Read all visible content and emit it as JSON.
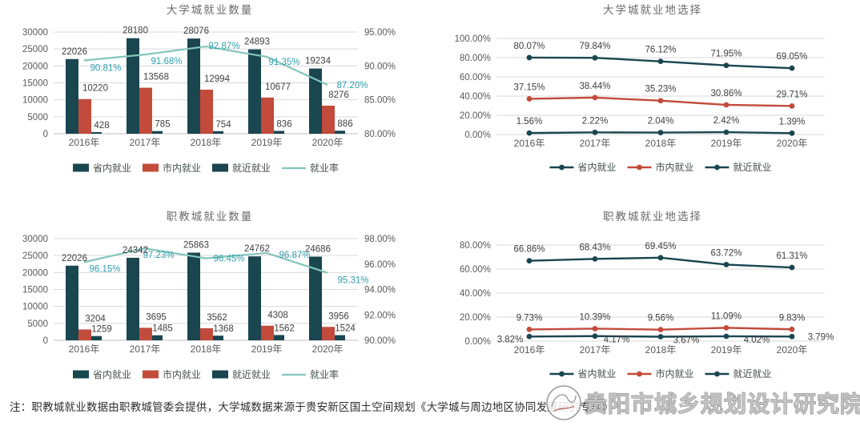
{
  "page": {
    "background": "#ffffff"
  },
  "colors": {
    "dark": "#1a4650",
    "red": "#c24b3c",
    "teal": "#84c5bb",
    "label": "#3f3f3f",
    "axis": "#595959",
    "title": "#6a6a6a",
    "grid": "#d9d9d9",
    "baseline": "#bfbfbf",
    "line_label": "#2f9fae",
    "legend_text": "#44504f",
    "watermark": "#8f8f8f"
  },
  "chart_data": [
    {
      "id": "university-town-employment-count",
      "type": "bar",
      "title": "大学城就业数量",
      "categories": [
        "2016年",
        "2017年",
        "2018年",
        "2019年",
        "2020年"
      ],
      "series": [
        {
          "name": "省内就业",
          "role": "bar",
          "color": "dark",
          "values": [
            22026,
            28180,
            28076,
            24893,
            19234
          ]
        },
        {
          "name": "市内就业",
          "role": "bar",
          "color": "red",
          "values": [
            10220,
            13568,
            12994,
            10677,
            8276
          ]
        },
        {
          "name": "就近就业",
          "role": "bar",
          "color": "dark",
          "values": [
            428,
            785,
            754,
            836,
            886
          ]
        },
        {
          "name": "就业率",
          "role": "line",
          "color": "teal",
          "values": [
            90.81,
            91.68,
            92.87,
            91.35,
            87.2
          ]
        }
      ],
      "y_left": {
        "min": 0,
        "max": 30000,
        "step": 5000
      },
      "y_right": {
        "min": 80,
        "max": 95,
        "step": 5
      },
      "grid": true,
      "legend_position": "bottom"
    },
    {
      "id": "university-town-employment-location",
      "type": "line",
      "title": "大学城就业地选择",
      "categories": [
        "2016年",
        "2017年",
        "2018年",
        "2019年",
        "2020年"
      ],
      "series": [
        {
          "name": "省内就业",
          "color": "dark",
          "values": [
            80.07,
            79.84,
            76.12,
            71.95,
            69.05
          ]
        },
        {
          "name": "市内就业",
          "color": "red",
          "values": [
            37.15,
            38.44,
            35.23,
            30.86,
            29.71
          ]
        },
        {
          "name": "就近就业",
          "color": "dark",
          "values": [
            1.56,
            2.22,
            2.04,
            2.42,
            1.39
          ]
        }
      ],
      "y": {
        "min": 0,
        "max": 100,
        "step": 20
      },
      "grid": true,
      "legend_position": "bottom"
    },
    {
      "id": "vocational-town-employment-count",
      "type": "bar",
      "title": "职教城就业数量",
      "categories": [
        "2016年",
        "2017年",
        "2018年",
        "2019年",
        "2020年"
      ],
      "series": [
        {
          "name": "省内就业",
          "role": "bar",
          "color": "dark",
          "values": [
            22026,
            24342,
            25863,
            24762,
            24686
          ]
        },
        {
          "name": "市内就业",
          "role": "bar",
          "color": "red",
          "values": [
            3204,
            3695,
            3562,
            4308,
            3956
          ]
        },
        {
          "name": "就近就业",
          "role": "bar",
          "color": "dark",
          "values": [
            1259,
            1485,
            1368,
            1562,
            1524
          ]
        },
        {
          "name": "就业率",
          "role": "line",
          "color": "teal",
          "values": [
            96.15,
            97.23,
            96.45,
            96.87,
            95.31
          ]
        }
      ],
      "y_left": {
        "min": 0,
        "max": 30000,
        "step": 5000
      },
      "y_right": {
        "min": 90,
        "max": 98,
        "step": 2
      },
      "grid": true,
      "legend_position": "bottom"
    },
    {
      "id": "vocational-town-employment-location",
      "type": "line",
      "title": "职教城就业地选择",
      "categories": [
        "2016年",
        "2017年",
        "2018年",
        "2019年",
        "2020年"
      ],
      "series": [
        {
          "name": "省内就业",
          "color": "dark",
          "values": [
            66.86,
            68.43,
            69.45,
            63.72,
            61.31
          ]
        },
        {
          "name": "市内就业",
          "color": "red",
          "values": [
            9.73,
            10.39,
            9.56,
            11.09,
            9.83
          ]
        },
        {
          "name": "就近就业",
          "color": "dark",
          "values": [
            3.82,
            4.17,
            3.67,
            4.02,
            3.79
          ]
        }
      ],
      "y": {
        "min": 0,
        "max": 80,
        "step": 20
      },
      "grid": true,
      "legend_position": "bottom"
    }
  ],
  "note": {
    "text": "注：职教城就业数据由职教城管委会提供，大学城数据来源于贵安新区国土空间规划《大学城与周边地区协同发展研究专题》"
  },
  "watermark": {
    "text": "贵阳市城乡规划设计研究院"
  }
}
